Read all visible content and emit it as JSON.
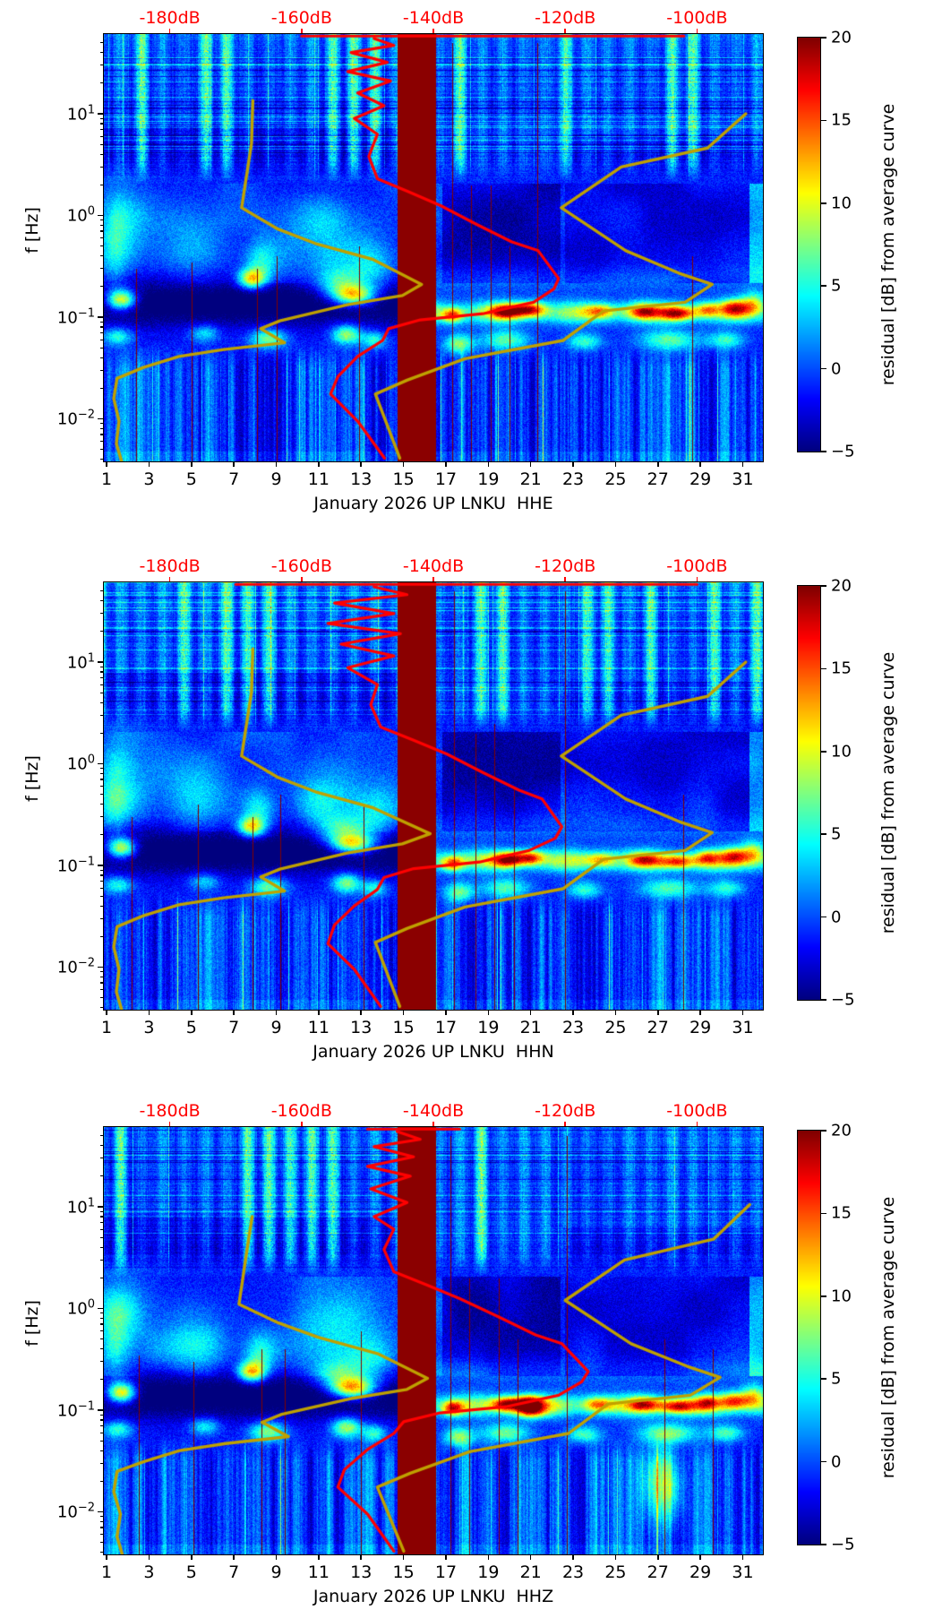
{
  "figure": {
    "ylabel": "f [Hz]",
    "y_ticks": [
      {
        "mantissa": "10",
        "exponent": "1",
        "hz": 10
      },
      {
        "mantissa": "10",
        "exponent": "0",
        "hz": 1
      },
      {
        "mantissa": "10",
        "exponent": "−1",
        "hz": 0.1
      },
      {
        "mantissa": "10",
        "exponent": "−2",
        "hz": 0.01
      }
    ],
    "top_ticks": [
      {
        "label": "-180dB",
        "db": -180
      },
      {
        "label": "-160dB",
        "db": -160
      },
      {
        "label": "-140dB",
        "db": -140
      },
      {
        "label": "-120dB",
        "db": -120
      },
      {
        "label": "-100dB",
        "db": -100
      }
    ],
    "x_ticks": [
      {
        "label": "1",
        "day": 1
      },
      {
        "label": "3",
        "day": 3
      },
      {
        "label": "5",
        "day": 5
      },
      {
        "label": "7",
        "day": 7
      },
      {
        "label": "9",
        "day": 9
      },
      {
        "label": "11",
        "day": 11
      },
      {
        "label": "13",
        "day": 13
      },
      {
        "label": "15",
        "day": 15
      },
      {
        "label": "17",
        "day": 17
      },
      {
        "label": "19",
        "day": 19
      },
      {
        "label": "21",
        "day": 21
      },
      {
        "label": "23",
        "day": 23
      },
      {
        "label": "25",
        "day": 25
      },
      {
        "label": "27",
        "day": 27
      },
      {
        "label": "29",
        "day": 29
      },
      {
        "label": "31",
        "day": 31
      }
    ],
    "colorbar": {
      "label": "residual [dB] from average curve",
      "ticks": [
        {
          "label": "20",
          "value": 20
        },
        {
          "label": "15",
          "value": 15
        },
        {
          "label": "10",
          "value": 10
        },
        {
          "label": "5",
          "value": 5
        },
        {
          "label": "0",
          "value": 0
        },
        {
          "label": "−5",
          "value": -5
        }
      ],
      "vmin": -5,
      "vmax": 20
    },
    "panels": [
      {
        "channel": "HHE",
        "xlabel": "January 2026 UP LNKU  HHE"
      },
      {
        "channel": "HHN",
        "xlabel": "January 2026 UP LNKU  HHN"
      },
      {
        "channel": "HHZ",
        "xlabel": "January 2026 UP LNKU  HHZ"
      }
    ]
  },
  "colors": {
    "curve_red": "#ff0000",
    "curve_olive": "#bfa100",
    "gap_band": "#8b0000",
    "top_tick_label": "#ff0000",
    "axis": "#000000",
    "background": "#ffffff"
  },
  "chart_data": {
    "type": "heatmap",
    "subtype": "seismic-noise-residual-spectrograms",
    "title": "",
    "n_panels": 3,
    "x_axis": {
      "label_template": "January 2026 UP LNKU  <channel>",
      "unit": "day of month",
      "range_days": [
        0.87,
        31.95
      ],
      "tick_days": [
        1,
        3,
        5,
        7,
        9,
        11,
        13,
        15,
        17,
        19,
        21,
        23,
        25,
        27,
        29,
        31
      ]
    },
    "top_axis": {
      "unit": "PSD dB",
      "range_db": [
        -190,
        -90
      ],
      "ticks_db": [
        -180,
        -160,
        -140,
        -120,
        -100
      ],
      "tick_labels": [
        "-180dB",
        "-160dB",
        "-140dB",
        "-120dB",
        "-100dB"
      ],
      "color": "#ff0000"
    },
    "y_axis": {
      "label": "f [Hz]",
      "scale": "log",
      "range_hz": [
        0.0038,
        60.8
      ],
      "tick_hz": [
        10,
        1,
        0.1,
        0.01
      ]
    },
    "colorbar": {
      "label": "residual [dB] from average curve",
      "range": [
        -5,
        20
      ],
      "ticks": [
        20,
        15,
        10,
        5,
        0,
        -5
      ],
      "colormap": "jet"
    },
    "data_gap_band_days": [
      14.7,
      16.52
    ],
    "heatmap_note": "Residual spectrogram (dB vs average) per panel; values qualitative: ~0 dB blue background, dark band -5 dB at 0.08-0.25 Hz days 1-14.7, bright +8..+18 dB microseism spots near 0.1-0.25 Hz, striped anthropogenic bands above 3 Hz, thin transient spikes, dark-red masked gap days 14.7-16.5.",
    "panels": [
      {
        "channel": "HHE",
        "xlabel": "January 2026 UP LNKU  HHE",
        "red_top_clip_db": [
          -160,
          -102
        ],
        "red_psd_curve_db_hz": [
          [
            -149,
            55
          ],
          [
            -146,
            47
          ],
          [
            -152.5,
            40
          ],
          [
            -147,
            32
          ],
          [
            -153,
            26
          ],
          [
            -146.5,
            21
          ],
          [
            -151.5,
            16
          ],
          [
            -147.5,
            12
          ],
          [
            -152,
            9
          ],
          [
            -148.5,
            6.3
          ],
          [
            -149.8,
            3.8
          ],
          [
            -148.5,
            2.3
          ],
          [
            -143.7,
            1.7
          ],
          [
            -138.9,
            1.25
          ],
          [
            -133.5,
            0.82
          ],
          [
            -128.1,
            0.55
          ],
          [
            -124.1,
            0.45
          ],
          [
            -121,
            0.24
          ],
          [
            -121.7,
            0.19
          ],
          [
            -124.8,
            0.14
          ],
          [
            -132.5,
            0.108
          ],
          [
            -142,
            0.094
          ],
          [
            -146.8,
            0.077
          ],
          [
            -147.7,
            0.059
          ],
          [
            -151.5,
            0.041
          ],
          [
            -154.5,
            0.026
          ],
          [
            -155.6,
            0.0175
          ],
          [
            -151.5,
            0.0095
          ],
          [
            -147.4,
            0.0041
          ]
        ],
        "olive_curve_left_db_hz": [
          [
            -167.4,
            13.5
          ],
          [
            -167.6,
            5.1
          ],
          [
            -169.1,
            1.19
          ],
          [
            -163.7,
            0.74
          ],
          [
            -157.9,
            0.53
          ],
          [
            -149.2,
            0.37
          ],
          [
            -141.8,
            0.21
          ],
          [
            -144.7,
            0.163
          ],
          [
            -152.9,
            0.133
          ],
          [
            -163.3,
            0.092
          ],
          [
            -166.2,
            0.077
          ],
          [
            -162.6,
            0.056
          ],
          [
            -171.8,
            0.048
          ],
          [
            -178.6,
            0.041
          ],
          [
            -184,
            0.032
          ],
          [
            -188,
            0.025
          ],
          [
            -188.5,
            0.0158
          ],
          [
            -187.7,
            0.0095
          ],
          [
            -188.1,
            0.0057
          ],
          [
            -187.3,
            0.0038
          ]
        ],
        "olive_curve_right_db_hz": [
          [
            -92.6,
            10
          ],
          [
            -98.4,
            4.6
          ],
          [
            -111.5,
            3
          ],
          [
            -120.6,
            1.19
          ],
          [
            -110.8,
            0.45
          ],
          [
            -102.7,
            0.27
          ],
          [
            -97.7,
            0.21
          ],
          [
            -101.8,
            0.14
          ],
          [
            -114.2,
            0.115
          ],
          [
            -120.3,
            0.059
          ],
          [
            -135.2,
            0.039
          ],
          [
            -144,
            0.024
          ],
          [
            -148.8,
            0.0175
          ],
          [
            -145.1,
            0.0041
          ]
        ]
      },
      {
        "channel": "HHN",
        "xlabel": "January 2026 UP LNKU  HHN",
        "red_top_clip_db": [
          -170,
          -100
        ],
        "red_psd_curve_db_hz": [
          [
            -149,
            55
          ],
          [
            -144,
            46
          ],
          [
            -155,
            38
          ],
          [
            -146,
            30
          ],
          [
            -156,
            24
          ],
          [
            -145,
            19
          ],
          [
            -154,
            15
          ],
          [
            -146,
            11.5
          ],
          [
            -153,
            8.8
          ],
          [
            -148.5,
            6
          ],
          [
            -149.5,
            3.8
          ],
          [
            -148,
            2.3
          ],
          [
            -143,
            1.7
          ],
          [
            -138,
            1.25
          ],
          [
            -132.5,
            0.82
          ],
          [
            -127,
            0.55
          ],
          [
            -123.5,
            0.45
          ],
          [
            -120.5,
            0.24
          ],
          [
            -121.5,
            0.185
          ],
          [
            -125.5,
            0.14
          ],
          [
            -133,
            0.108
          ],
          [
            -143,
            0.093
          ],
          [
            -147.5,
            0.076
          ],
          [
            -148.5,
            0.058
          ],
          [
            -152,
            0.04
          ],
          [
            -155,
            0.026
          ],
          [
            -156,
            0.017
          ],
          [
            -152,
            0.0095
          ],
          [
            -148,
            0.0041
          ]
        ],
        "olive_curve_left_db_hz": [
          [
            -167.4,
            13.5
          ],
          [
            -167.6,
            5.1
          ],
          [
            -169.1,
            1.19
          ],
          [
            -163.7,
            0.74
          ],
          [
            -157.9,
            0.53
          ],
          [
            -149.2,
            0.37
          ],
          [
            -140.5,
            0.205
          ],
          [
            -144.7,
            0.163
          ],
          [
            -152.9,
            0.133
          ],
          [
            -163.3,
            0.092
          ],
          [
            -166.2,
            0.077
          ],
          [
            -162.6,
            0.056
          ],
          [
            -171.8,
            0.048
          ],
          [
            -178.6,
            0.041
          ],
          [
            -184,
            0.032
          ],
          [
            -188,
            0.025
          ],
          [
            -188.5,
            0.0158
          ],
          [
            -187.7,
            0.0095
          ],
          [
            -188.1,
            0.0057
          ],
          [
            -187.3,
            0.0038
          ]
        ],
        "olive_curve_right_db_hz": [
          [
            -92.6,
            10
          ],
          [
            -98.4,
            4.6
          ],
          [
            -111.5,
            3
          ],
          [
            -120.6,
            1.19
          ],
          [
            -110.8,
            0.45
          ],
          [
            -102.7,
            0.27
          ],
          [
            -97.7,
            0.21
          ],
          [
            -101.8,
            0.14
          ],
          [
            -114.2,
            0.115
          ],
          [
            -120.3,
            0.059
          ],
          [
            -135.2,
            0.039
          ],
          [
            -144,
            0.024
          ],
          [
            -148.8,
            0.0175
          ],
          [
            -145.1,
            0.0041
          ]
        ]
      },
      {
        "channel": "HHZ",
        "xlabel": "January 2026 UP LNKU  HHZ",
        "red_top_clip_db": [
          -150,
          -136
        ],
        "red_psd_curve_db_hz": [
          [
            -145.5,
            55
          ],
          [
            -142,
            46
          ],
          [
            -149,
            39
          ],
          [
            -143,
            31
          ],
          [
            -150,
            25
          ],
          [
            -143.5,
            20
          ],
          [
            -149.5,
            15
          ],
          [
            -144,
            11
          ],
          [
            -149,
            8
          ],
          [
            -146,
            6
          ],
          [
            -147.5,
            3.8
          ],
          [
            -146,
            2.3
          ],
          [
            -141,
            1.7
          ],
          [
            -136,
            1.25
          ],
          [
            -130,
            0.82
          ],
          [
            -124.5,
            0.55
          ],
          [
            -120.5,
            0.45
          ],
          [
            -116.5,
            0.24
          ],
          [
            -117.5,
            0.19
          ],
          [
            -121,
            0.14
          ],
          [
            -129,
            0.108
          ],
          [
            -139,
            0.094
          ],
          [
            -144.5,
            0.077
          ],
          [
            -146,
            0.059
          ],
          [
            -150,
            0.041
          ],
          [
            -153.5,
            0.026
          ],
          [
            -154.5,
            0.0175
          ],
          [
            -150,
            0.0095
          ],
          [
            -146,
            0.0041
          ]
        ],
        "olive_curve_left_db_hz": [
          [
            -167.5,
            8
          ],
          [
            -168,
            5
          ],
          [
            -169.5,
            1.1
          ],
          [
            -163.5,
            0.72
          ],
          [
            -157.5,
            0.52
          ],
          [
            -148.5,
            0.36
          ],
          [
            -140.9,
            0.205
          ],
          [
            -144,
            0.16
          ],
          [
            -152.5,
            0.13
          ],
          [
            -163,
            0.091
          ],
          [
            -166,
            0.076
          ],
          [
            -162,
            0.055
          ],
          [
            -171.5,
            0.047
          ],
          [
            -178.5,
            0.04
          ],
          [
            -184,
            0.031
          ],
          [
            -188,
            0.025
          ],
          [
            -188.5,
            0.0158
          ],
          [
            -187.5,
            0.0095
          ],
          [
            -188,
            0.0057
          ],
          [
            -187.2,
            0.0038
          ]
        ],
        "olive_curve_right_db_hz": [
          [
            -92,
            10.5
          ],
          [
            -97.5,
            4.8
          ],
          [
            -111,
            3
          ],
          [
            -120,
            1.2
          ],
          [
            -110,
            0.45
          ],
          [
            -101.5,
            0.27
          ],
          [
            -96.5,
            0.21
          ],
          [
            -101,
            0.14
          ],
          [
            -113.5,
            0.115
          ],
          [
            -119.5,
            0.059
          ],
          [
            -134.5,
            0.039
          ],
          [
            -143.5,
            0.024
          ],
          [
            -148.5,
            0.0175
          ],
          [
            -144.5,
            0.0041
          ]
        ]
      }
    ]
  }
}
